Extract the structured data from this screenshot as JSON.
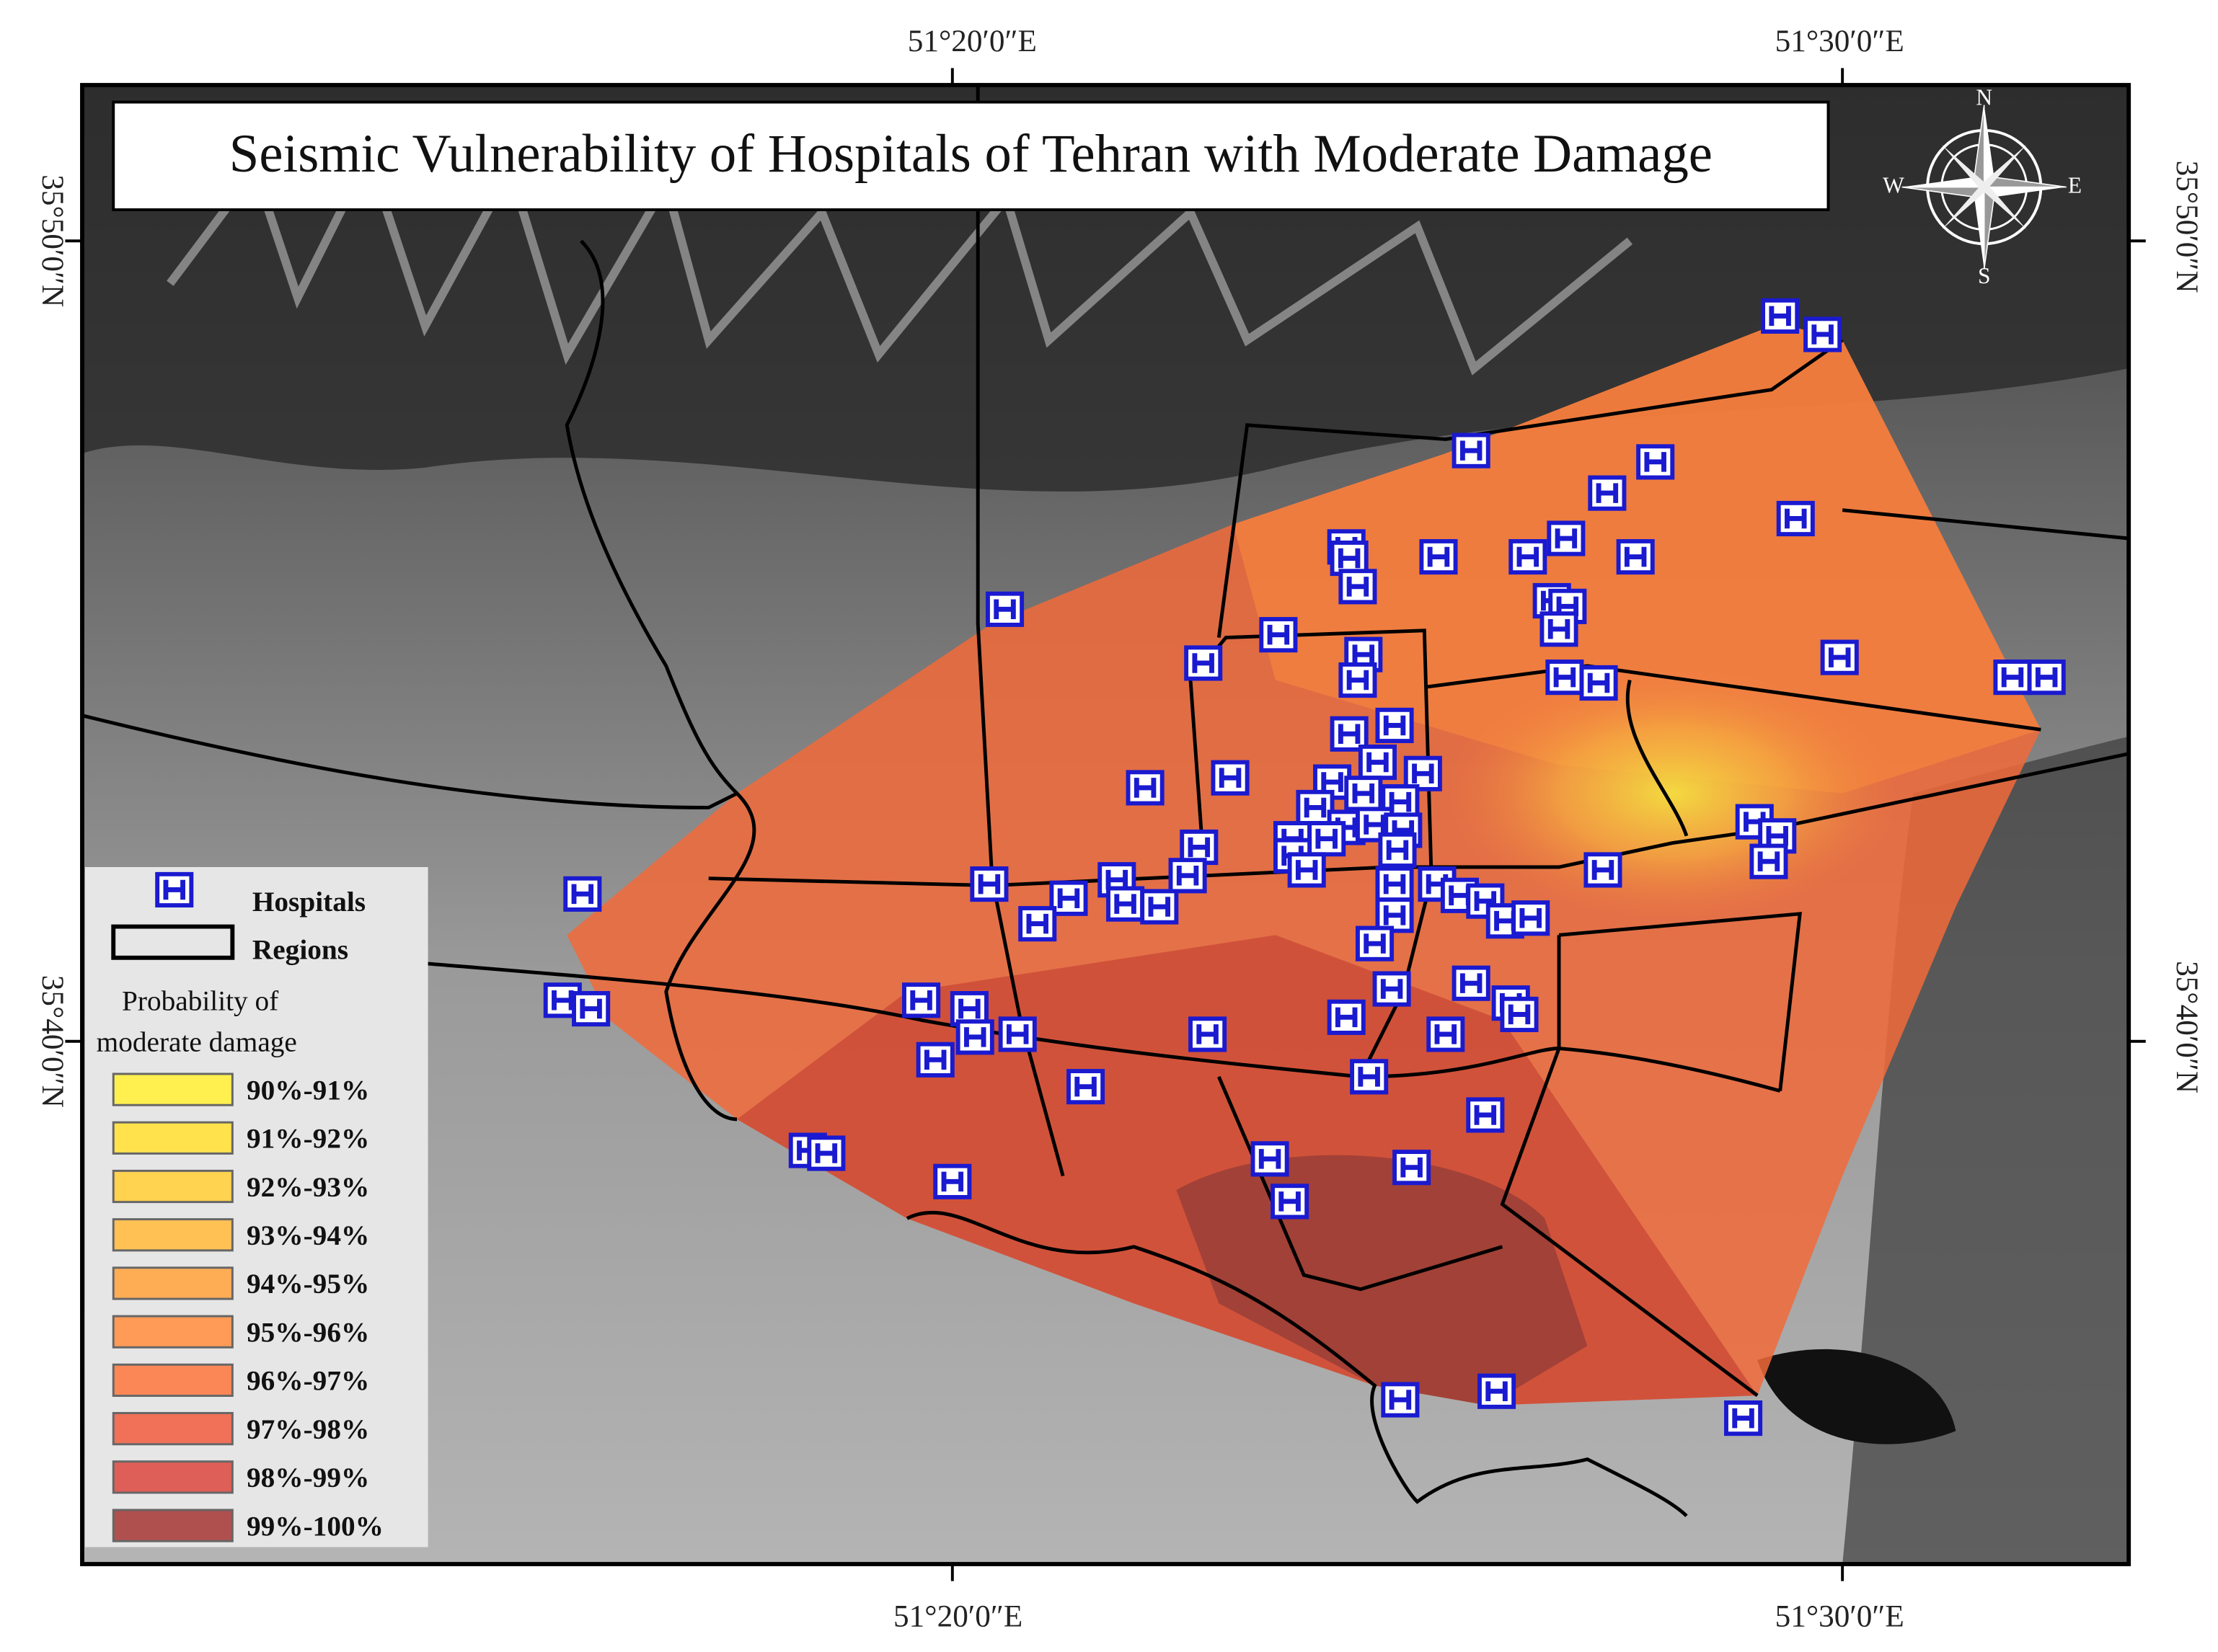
{
  "map": {
    "title": "Seismic Vulnerability of Hospitals of Tehran with Moderate Damage",
    "grid_labels": {
      "top": [
        "51°20′0″E",
        "51°30′0″E"
      ],
      "bottom": [
        "51°20′0″E",
        "51°30′0″E"
      ],
      "left": [
        "35°50′0″N",
        "35°40′0″N"
      ],
      "right": [
        "35°50′0″N",
        "35°40′0″N"
      ]
    },
    "compass": {
      "north": "N",
      "south": "S",
      "east": "E",
      "west": "W"
    },
    "legend": {
      "hospitals": "Hospitals",
      "regions": "Regions",
      "title_lines": [
        "Probability of",
        "moderate damage"
      ],
      "classes": [
        {
          "label": "90%-91%",
          "color": "#fff04f"
        },
        {
          "label": "91%-92%",
          "color": "#ffe24c"
        },
        {
          "label": "92%-93%",
          "color": "#ffd250"
        },
        {
          "label": "93%-94%",
          "color": "#ffc154"
        },
        {
          "label": "94%-95%",
          "color": "#ffad55"
        },
        {
          "label": "95%-96%",
          "color": "#ff9b56"
        },
        {
          "label": "96%-97%",
          "color": "#fb8756"
        },
        {
          "label": "97%-98%",
          "color": "#f07058"
        },
        {
          "label": "98%-99%",
          "color": "#de5e58"
        },
        {
          "label": "99%-100%",
          "color": "#b0504e"
        }
      ]
    }
  }
}
